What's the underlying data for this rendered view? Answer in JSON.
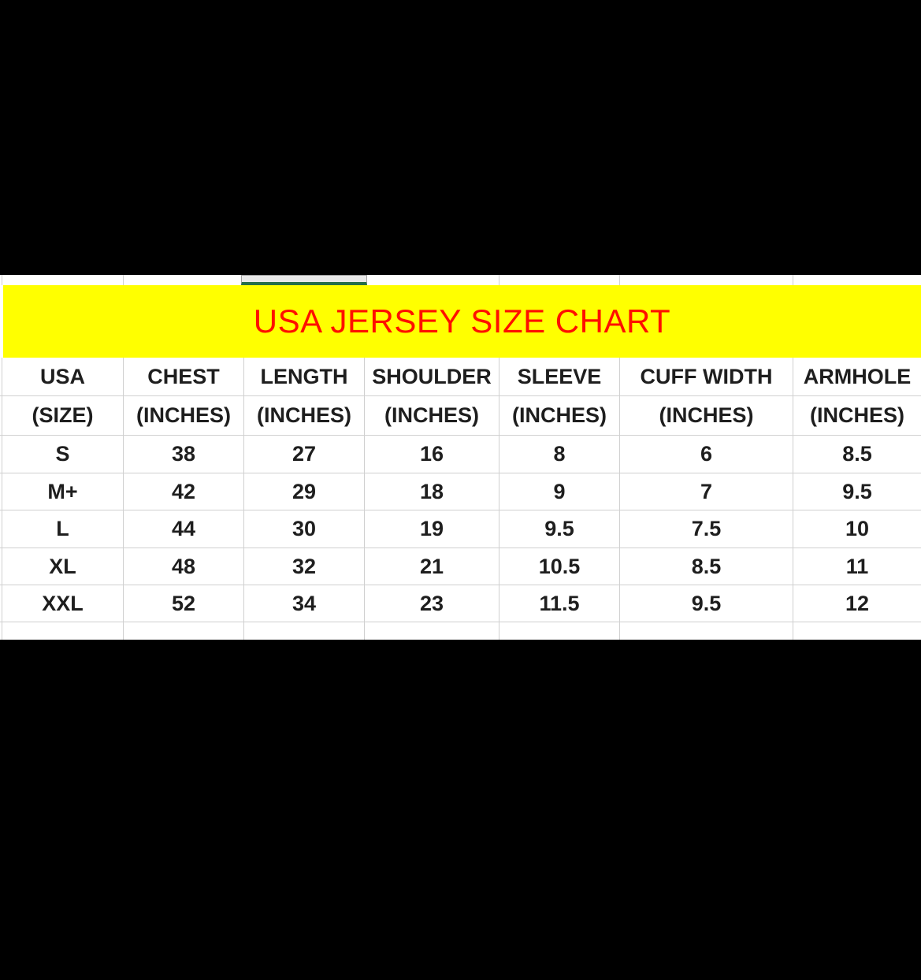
{
  "banner": {
    "title": "USA JERSEY SIZE CHART"
  },
  "table": {
    "columns": [
      {
        "label": "USA",
        "unit": "(SIZE)"
      },
      {
        "label": "CHEST",
        "unit": "(INCHES)"
      },
      {
        "label": "LENGTH",
        "unit": "(INCHES)"
      },
      {
        "label": "SHOULDER",
        "unit": "(INCHES)"
      },
      {
        "label": "SLEEVE",
        "unit": "(INCHES)"
      },
      {
        "label": "CUFF WIDTH",
        "unit": "(INCHES)"
      },
      {
        "label": "ARMHOLE",
        "unit": "(INCHES)"
      }
    ],
    "rows": [
      [
        "S",
        "38",
        "27",
        "16",
        "8",
        "6",
        "8.5"
      ],
      [
        "M+",
        "42",
        "29",
        "18",
        "9",
        "7",
        "9.5"
      ],
      [
        "L",
        "44",
        "30",
        "19",
        "9.5",
        "7.5",
        "10"
      ],
      [
        "XL",
        "48",
        "32",
        "21",
        "10.5",
        "8.5",
        "11"
      ],
      [
        "XXL",
        "52",
        "34",
        "23",
        "11.5",
        "9.5",
        "12"
      ]
    ]
  },
  "colors": {
    "banner_bg": "#ffff00",
    "title_red": "#ff0f00",
    "selection_green": "#256e48",
    "gridline": "#d0d0d0",
    "cell_text": "#1e1e1e",
    "selected_cell_fill": "#e9e9e9",
    "letterbox": "#000000"
  }
}
